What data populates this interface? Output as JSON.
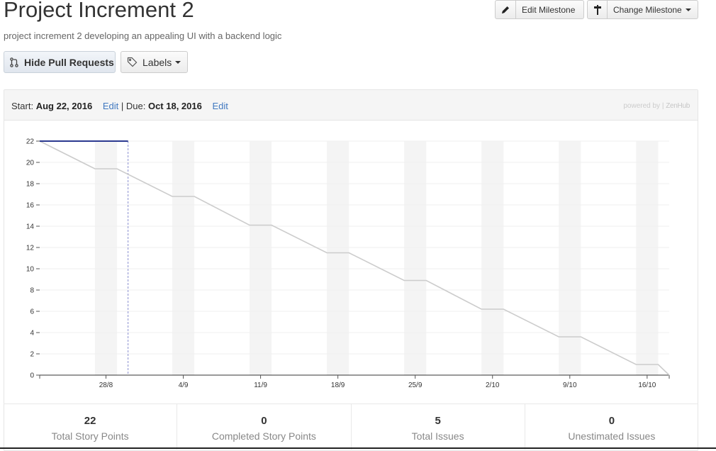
{
  "milestone": {
    "title": "Project Increment 2",
    "description": "project increment 2 developing an appealing UI with a backend logic"
  },
  "toolbar": {
    "edit_label": "Edit Milestone",
    "change_label": "Change Milestone",
    "hide_pr_label": "Hide Pull Requests",
    "labels_label": "Labels"
  },
  "dates": {
    "start_label": "Start:",
    "start_value": "Aug 22, 2016",
    "edit1": "Edit",
    "separator": "|",
    "due_label": "Due:",
    "due_value": "Oct 18, 2016",
    "edit2": "Edit"
  },
  "powered": {
    "prefix": "powered by |",
    "brand": "ZenHub"
  },
  "colors": {
    "ideal_line": "#cccccc",
    "actual_line": "#2b3990",
    "today_line": "#8a8fd0",
    "weekend_band": "#f4f4f4",
    "link": "#4078c0"
  },
  "chart_data": {
    "type": "line",
    "title": "",
    "xlabel": "",
    "ylabel": "",
    "y_ticks": [
      0,
      2,
      4,
      6,
      8,
      10,
      12,
      14,
      16,
      18,
      20,
      22
    ],
    "ylim": [
      0,
      22
    ],
    "xlim": [
      "2016-08-22",
      "2016-10-18"
    ],
    "x_tick_labels": [
      "28/8",
      "4/9",
      "11/9",
      "18/9",
      "25/9",
      "2/10",
      "9/10",
      "16/10"
    ],
    "x_tick_dates": [
      "2016-08-28",
      "2016-09-04",
      "2016-09-11",
      "2016-09-18",
      "2016-09-25",
      "2016-10-02",
      "2016-10-09",
      "2016-10-16"
    ],
    "weekends": [
      [
        "2016-08-27",
        "2016-08-29"
      ],
      [
        "2016-09-03",
        "2016-09-05"
      ],
      [
        "2016-09-10",
        "2016-09-12"
      ],
      [
        "2016-09-17",
        "2016-09-19"
      ],
      [
        "2016-09-24",
        "2016-09-26"
      ],
      [
        "2016-10-01",
        "2016-10-03"
      ],
      [
        "2016-10-08",
        "2016-10-10"
      ],
      [
        "2016-10-15",
        "2016-10-17"
      ]
    ],
    "grid": true,
    "today": "2016-08-30",
    "series": [
      {
        "points": [
          [
            "2016-08-22",
            22
          ],
          [
            "2016-08-27",
            19.4
          ],
          [
            "2016-08-29",
            19.4
          ],
          [
            "2016-09-03",
            16.8
          ],
          [
            "2016-09-05",
            16.8
          ],
          [
            "2016-09-10",
            14.1
          ],
          [
            "2016-09-12",
            14.1
          ],
          [
            "2016-09-17",
            11.5
          ],
          [
            "2016-09-19",
            11.5
          ],
          [
            "2016-09-24",
            8.9
          ],
          [
            "2016-09-26",
            8.9
          ],
          [
            "2016-10-01",
            6.2
          ],
          [
            "2016-10-03",
            6.2
          ],
          [
            "2016-10-08",
            3.6
          ],
          [
            "2016-10-10",
            3.6
          ],
          [
            "2016-10-15",
            1.0
          ],
          [
            "2016-10-17",
            1.0
          ],
          [
            "2016-10-18",
            0
          ]
        ]
      },
      {
        "points": [
          [
            "2016-08-22",
            22
          ],
          [
            "2016-08-30",
            22
          ]
        ]
      }
    ]
  },
  "stats": [
    {
      "value": "22",
      "label": "Total Story Points"
    },
    {
      "value": "0",
      "label": "Completed Story Points"
    },
    {
      "value": "5",
      "label": "Total Issues"
    },
    {
      "value": "0",
      "label": "Unestimated Issues"
    }
  ]
}
